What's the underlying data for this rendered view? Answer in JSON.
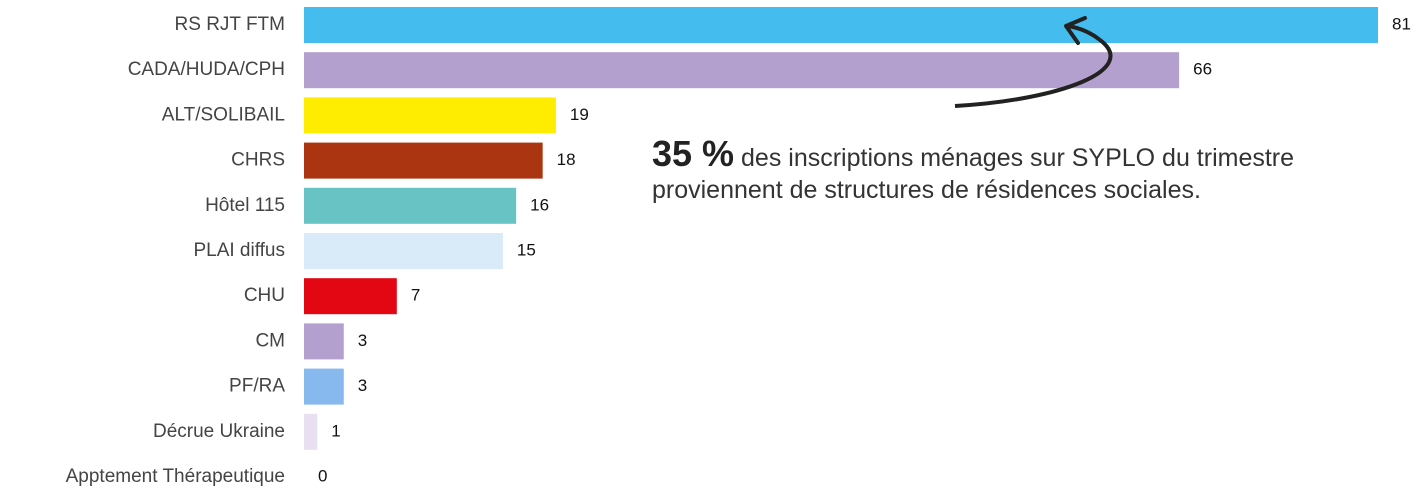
{
  "chart_data": {
    "type": "bar",
    "orientation": "horizontal",
    "categories": [
      "RS RJT FTM",
      "CADA/HUDA/CPH",
      "ALT/SOLIBAIL",
      "CHRS",
      "Hôtel 115",
      "PLAI diffus",
      "CHU",
      "CM",
      "PF/RA",
      "Décrue Ukraine",
      "Apptement Thérapeutique"
    ],
    "values": [
      81,
      66,
      19,
      18,
      16,
      15,
      7,
      3,
      3,
      1,
      0
    ],
    "colors": [
      "#44bdee",
      "#b4a0cf",
      "#ffed00",
      "#aa3510",
      "#68c3c4",
      "#d9eaf9",
      "#e30613",
      "#b4a0cf",
      "#87b9ef",
      "#e8e0f0",
      "#cccccc"
    ],
    "annotation": {
      "highlight": "35 %",
      "text": "des inscriptions ménages sur SYPLO du trimestre proviennent de structures de résidences sociales."
    }
  }
}
